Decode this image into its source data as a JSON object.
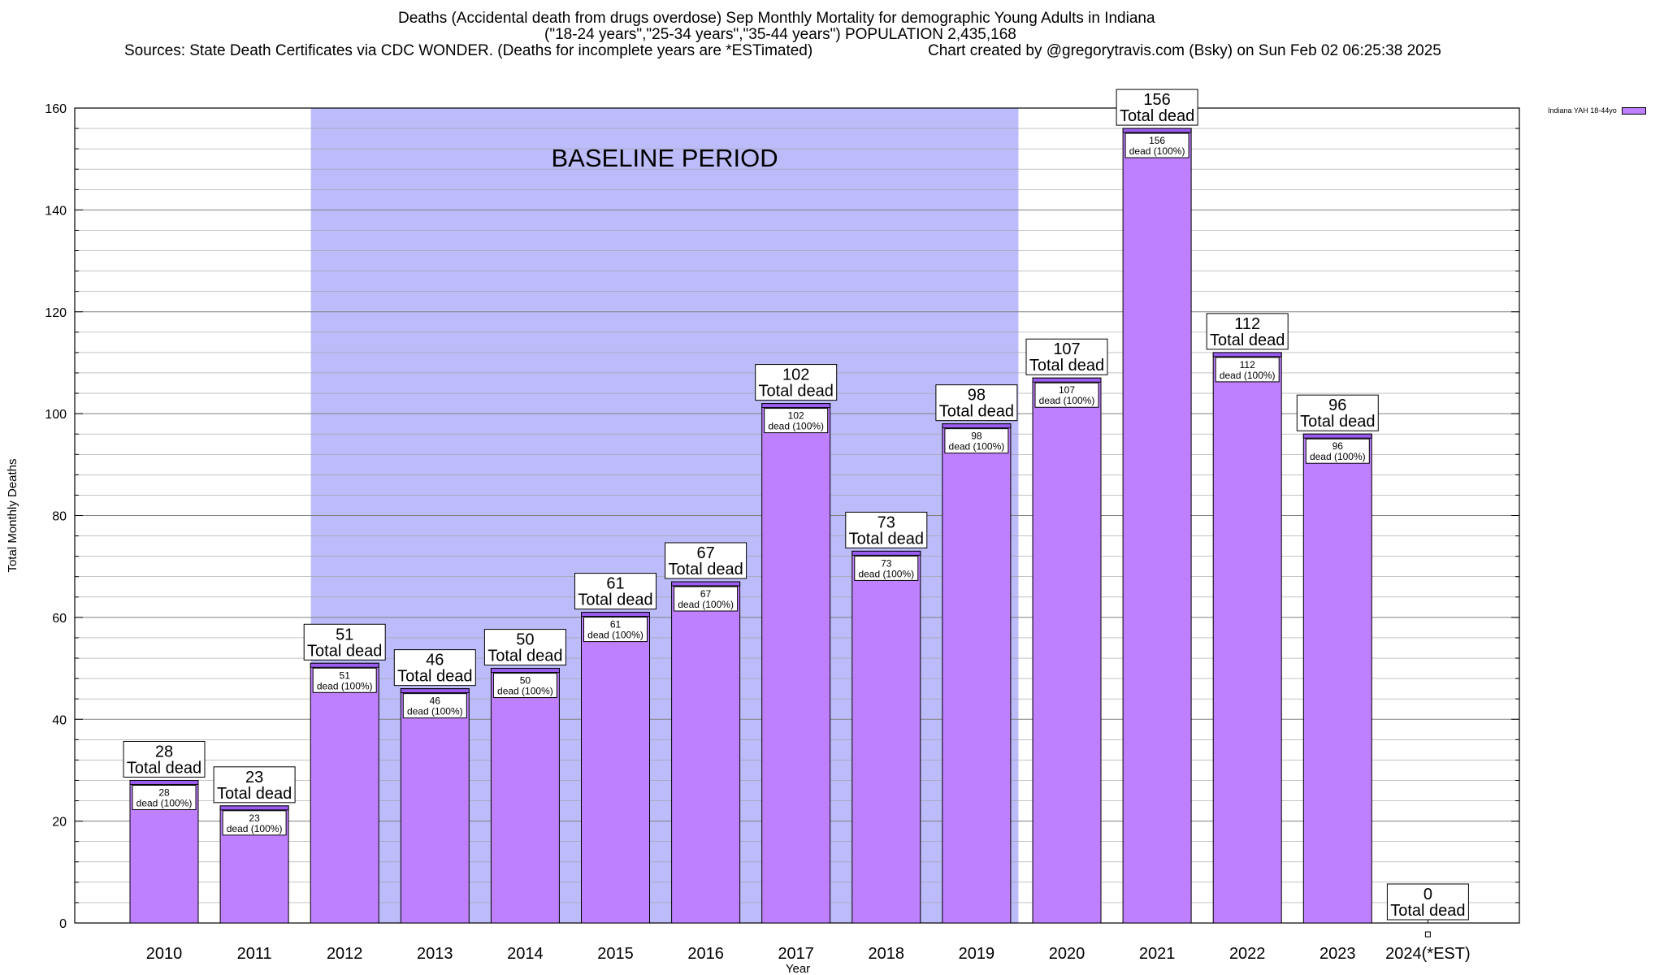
{
  "chart_data": {
    "type": "bar",
    "title": "Deaths (Accidental death from drugs overdose) Sep Monthly Mortality for demographic Young Adults in Indiana",
    "subtitle": "(\"18-24 years\",\"25-34 years\",\"35-44 years\") POPULATION 2,435,168",
    "sources": "Sources: State Death Certificates via CDC WONDER. (Deaths for incomplete years are *ESTimated)",
    "credit": "Chart created by @gregorytravis.com (Bsky) on Sun Feb 02 06:25:38 2025",
    "xlabel": "Year",
    "ylabel": "Total Monthly Deaths",
    "ylim": [
      0,
      160
    ],
    "yticks": [
      0,
      20,
      40,
      60,
      80,
      100,
      120,
      140,
      160
    ],
    "categories": [
      "2010",
      "2011",
      "2012",
      "2013",
      "2014",
      "2015",
      "2016",
      "2017",
      "2018",
      "2019",
      "2020",
      "2021",
      "2022",
      "2023",
      "2024(*EST)"
    ],
    "series": [
      {
        "name": "Indiana YAH 18-44yo",
        "values": [
          28,
          23,
          51,
          46,
          50,
          61,
          67,
          102,
          73,
          98,
          107,
          156,
          112,
          96,
          0
        ]
      }
    ],
    "total_label": "Total dead",
    "inner_label": "dead (100%)",
    "baseline": {
      "label": "BASELINE PERIOD",
      "start": "2012",
      "end": "2019"
    },
    "colors": {
      "bar": "#bf80ff",
      "bar_top": "#9b5cf0",
      "baseline": "#bcbcfa",
      "grid": "#a0a0a0"
    },
    "grid": true,
    "legend_position": "top-right"
  }
}
